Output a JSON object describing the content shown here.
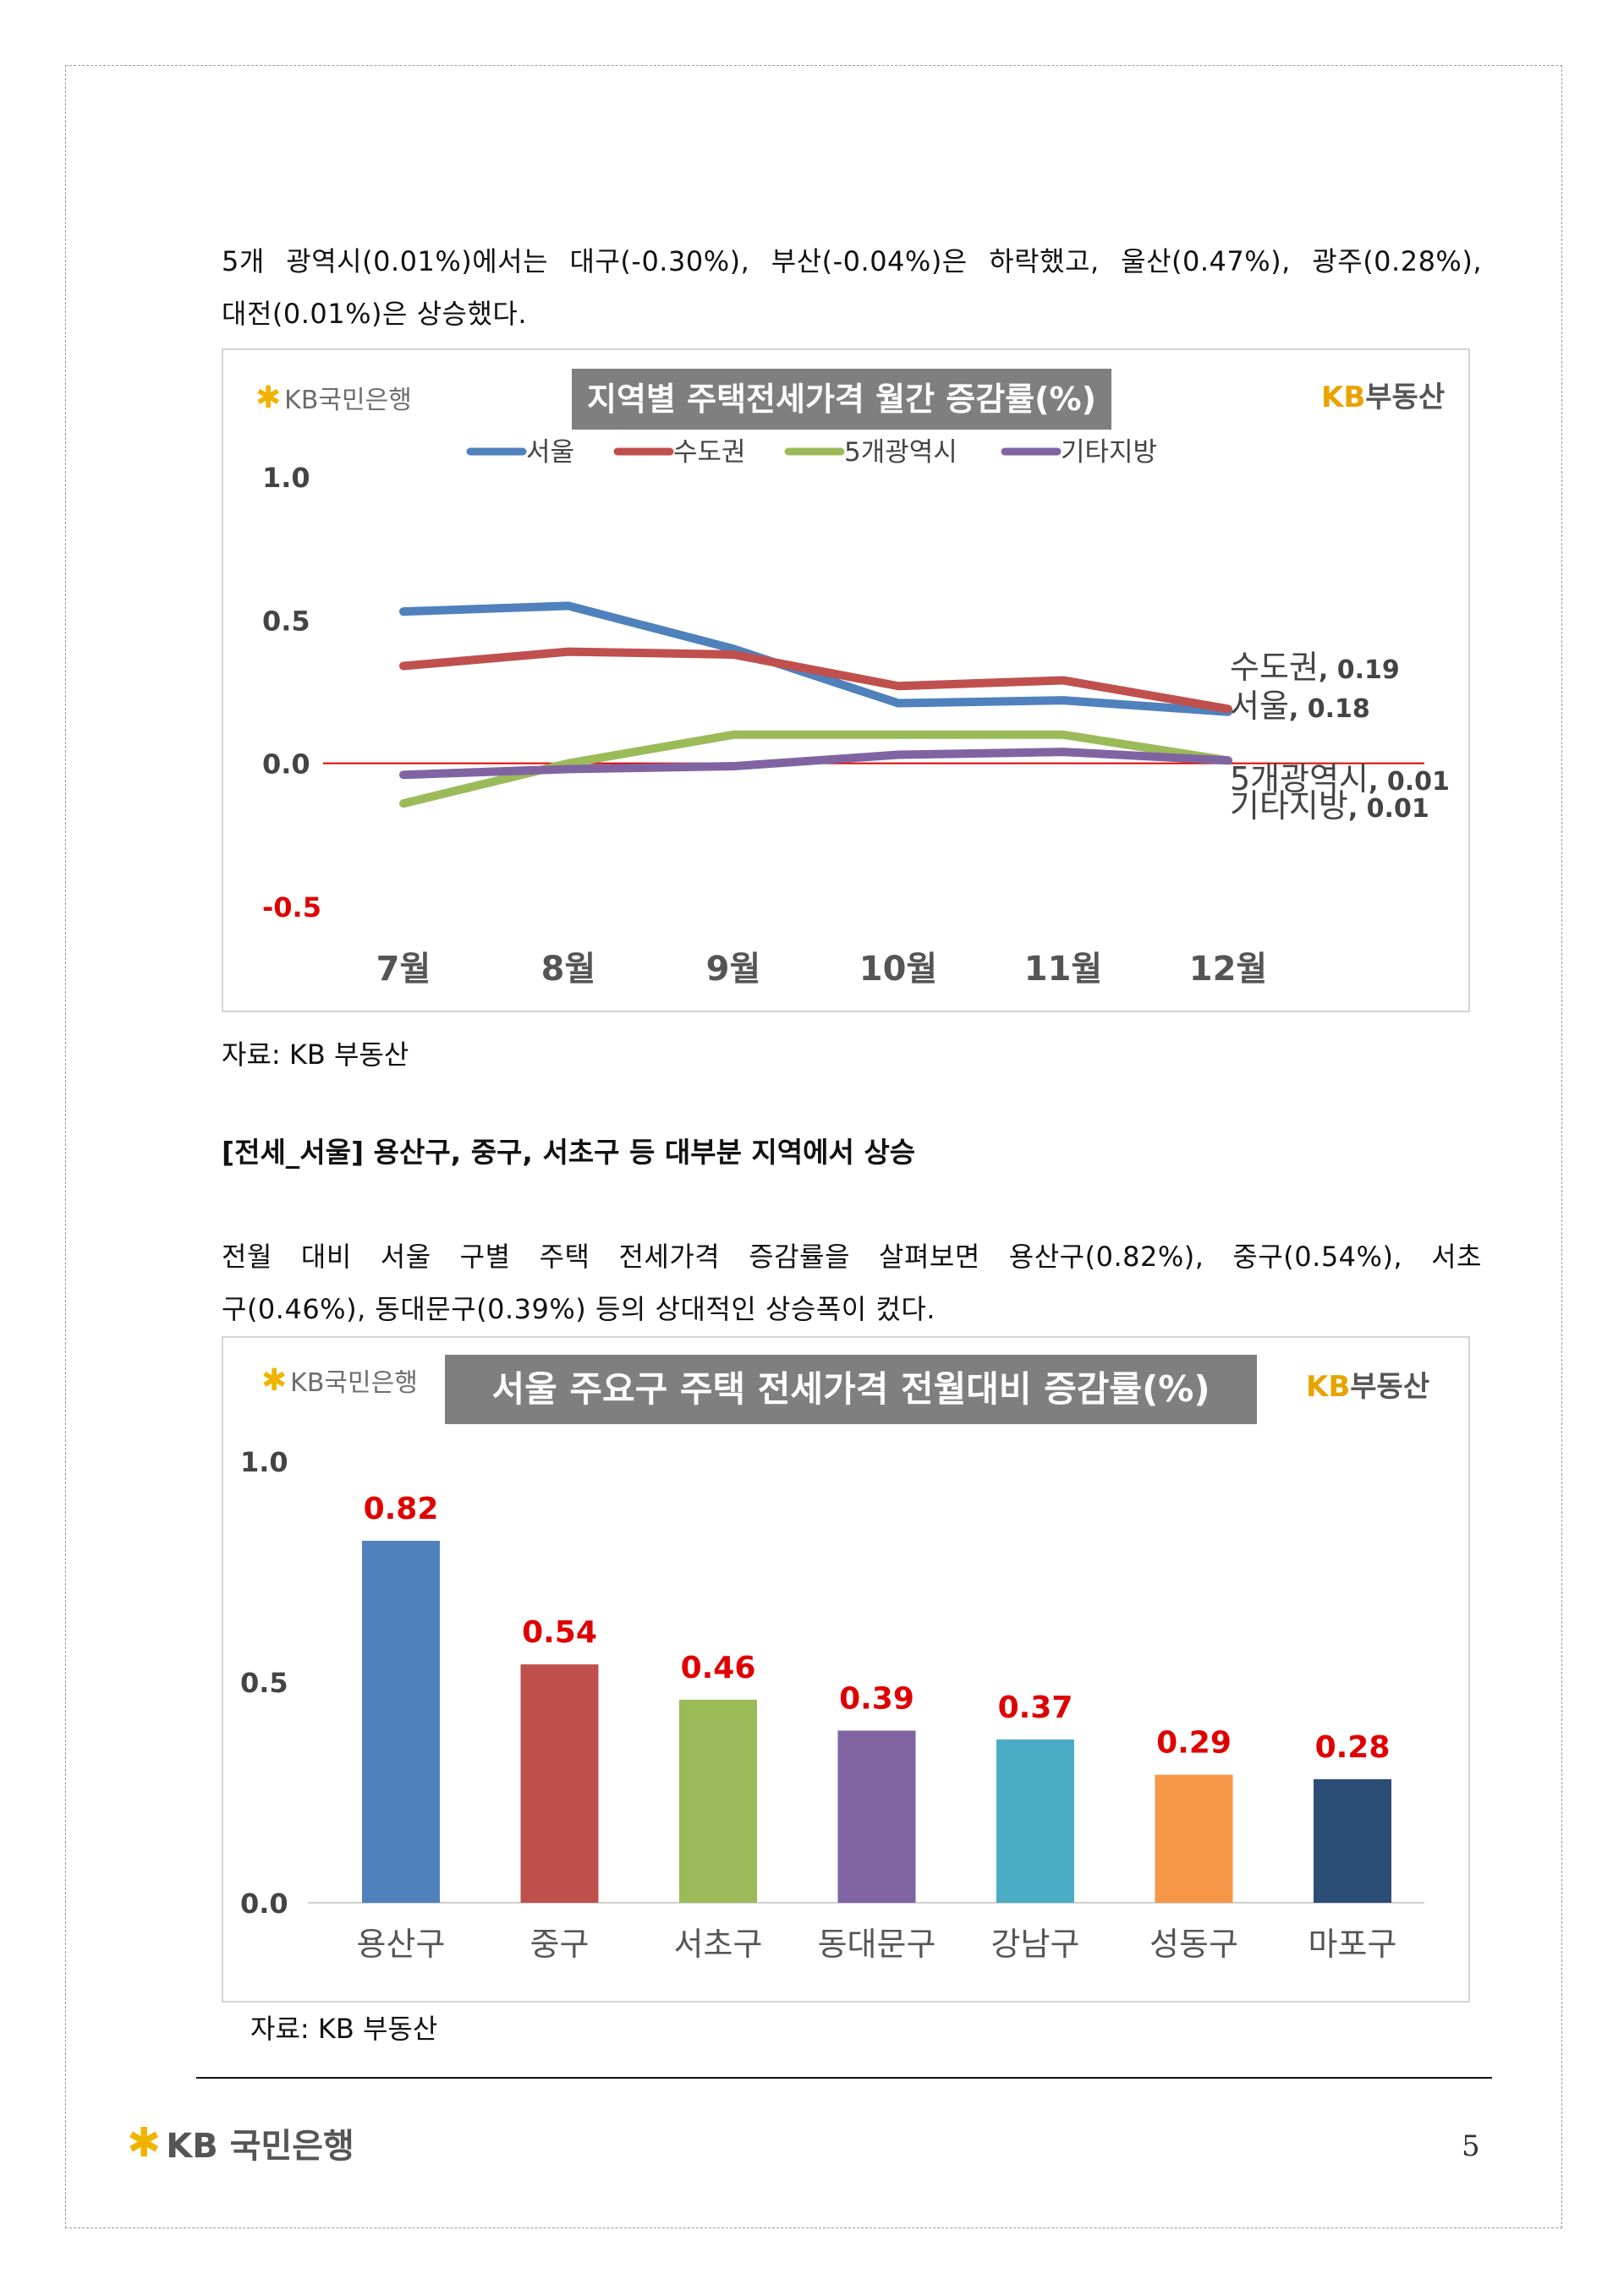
{
  "paragraphs": {
    "p1_line1": "5개 광역시(0.01%)에서는 대구(-0.30%), 부산(-0.04%)은 하락했고, 울산(0.47%), 광주(0.28%),",
    "p1_line2": "대전(0.01%)은 상승했다.",
    "heading": "[전세_서울] 용산구, 중구, 서초구 등 대부분 지역에서 상승",
    "p2_line1": "전월 대비 서울 구별 주택 전세가격 증감률을 살펴보면 용산구(0.82%), 중구(0.54%), 서초",
    "p2_line2": "구(0.46%), 동대문구(0.39%) 등의 상대적인 상승폭이 컸다."
  },
  "sources": {
    "source1": "자료: KB 부동산",
    "source2": "자료: KB 부동산"
  },
  "logos": {
    "kb_bank_symbol": "✱",
    "kb_bank_text": "KB국민은행",
    "kb_bank_kb": "KB",
    "kb_bank_name": "국민은행",
    "kb_realestate_kb": "KB",
    "kb_realestate_name": "부동산"
  },
  "footer": {
    "page_number": "5"
  },
  "colors": {
    "seoul": "#4f81bd",
    "metro": "#c0504d",
    "five_cities": "#9bbb59",
    "others": "#8064a2",
    "zero_line": "#e00000",
    "data_label_red": "#e00000",
    "title_bg": "#7f7f7f",
    "kb_yellow": "#f0b400"
  },
  "chart_data": [
    {
      "type": "line",
      "title": "지역별 주택전세가격 월간 증감률(%)",
      "categories": [
        "7월",
        "8월",
        "9월",
        "10월",
        "11월",
        "12월"
      ],
      "ylim": [
        -0.5,
        1.0
      ],
      "yticks": [
        "1.0",
        "0.5",
        "0.0",
        "-0.5"
      ],
      "ytick_values": [
        1.0,
        0.5,
        0.0,
        -0.5
      ],
      "legend": [
        "서울",
        "수도권",
        "5개광역시",
        "기타지방"
      ],
      "legend_position": "top",
      "grid": false,
      "series": [
        {
          "name": "서울",
          "color": "#4f81bd",
          "values": [
            0.53,
            0.55,
            0.4,
            0.21,
            0.22,
            0.18
          ]
        },
        {
          "name": "수도권",
          "color": "#c0504d",
          "values": [
            0.34,
            0.39,
            0.38,
            0.27,
            0.29,
            0.19
          ]
        },
        {
          "name": "5개광역시",
          "color": "#9bbb59",
          "values": [
            -0.14,
            0.0,
            0.1,
            0.1,
            0.1,
            0.01
          ]
        },
        {
          "name": "기타지방",
          "color": "#8064a2",
          "values": [
            -0.04,
            -0.02,
            -0.01,
            0.03,
            0.04,
            0.01
          ]
        }
      ],
      "end_labels": [
        {
          "name": "수도권",
          "value": "0.19"
        },
        {
          "name": "서울",
          "value": "0.18"
        },
        {
          "name": "5개광역시",
          "value": "0.01"
        },
        {
          "name": "기타지방",
          "value": "0.01"
        }
      ]
    },
    {
      "type": "bar",
      "title": "서울 주요구 주택 전세가격 전월대비 증감률(%)",
      "categories": [
        "용산구",
        "중구",
        "서초구",
        "동대문구",
        "강남구",
        "성동구",
        "마포구"
      ],
      "values": [
        0.82,
        0.54,
        0.46,
        0.39,
        0.37,
        0.29,
        0.28
      ],
      "value_labels": [
        "0.82",
        "0.54",
        "0.46",
        "0.39",
        "0.37",
        "0.29",
        "0.28"
      ],
      "colors": [
        "#4f81bd",
        "#c0504d",
        "#9bbb59",
        "#8064a2",
        "#4bacc6",
        "#f79646",
        "#2c4d75"
      ],
      "ylim": [
        0.0,
        1.0
      ],
      "yticks": [
        "1.0",
        "0.5",
        "0.0"
      ],
      "ytick_values": [
        1.0,
        0.5,
        0.0
      ],
      "grid": false
    }
  ]
}
